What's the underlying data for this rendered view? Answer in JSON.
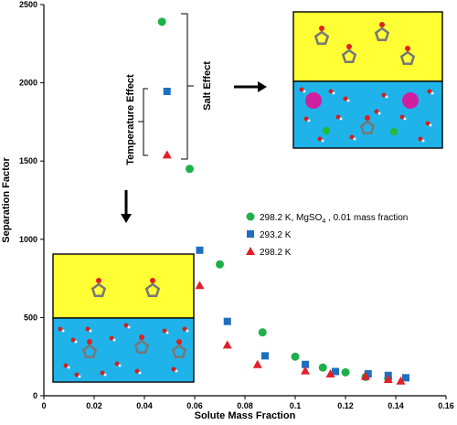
{
  "chart_data": {
    "type": "scatter",
    "xlabel": "Solute Mass Fraction",
    "ylabel": "Separation Factor",
    "xlim": [
      0,
      0.16
    ],
    "ylim": [
      0,
      2500
    ],
    "xticks": [
      "0",
      "0.02",
      "0.04",
      "0.06",
      "0.08",
      "0.1",
      "0.12",
      "0.14",
      "0.16"
    ],
    "yticks": [
      "0",
      "500",
      "1000",
      "1500",
      "2000",
      "2500"
    ],
    "grid": false,
    "legend_position": "center-right",
    "series": [
      {
        "name": "298.2 K, MgSO4 , 0.01  mass fraction",
        "legend_main": "298.2 K, MgSO",
        "legend_sub": "4",
        "legend_rest": " , 0.01  mass fraction",
        "marker": "circle",
        "color": "#1db04a",
        "points": [
          {
            "x": 0.047,
            "y": 2390
          },
          {
            "x": 0.058,
            "y": 1450
          },
          {
            "x": 0.07,
            "y": 840
          },
          {
            "x": 0.087,
            "y": 405
          },
          {
            "x": 0.1,
            "y": 250
          },
          {
            "x": 0.111,
            "y": 180
          },
          {
            "x": 0.12,
            "y": 150
          },
          {
            "x": 0.128,
            "y": 120
          },
          {
            "x": 0.137,
            "y": 110
          }
        ]
      },
      {
        "name": "293.2 K",
        "legend_main": "293.2 K",
        "marker": "square",
        "color": "#1f6fc0",
        "points": [
          {
            "x": 0.049,
            "y": 1945
          },
          {
            "x": 0.062,
            "y": 930
          },
          {
            "x": 0.073,
            "y": 475
          },
          {
            "x": 0.088,
            "y": 255
          },
          {
            "x": 0.104,
            "y": 200
          },
          {
            "x": 0.116,
            "y": 155
          },
          {
            "x": 0.129,
            "y": 140
          },
          {
            "x": 0.137,
            "y": 130
          },
          {
            "x": 0.144,
            "y": 115
          }
        ]
      },
      {
        "name": "298.2 K",
        "legend_main": "298.2 K",
        "marker": "triangle",
        "color": "#e0202a",
        "points": [
          {
            "x": 0.049,
            "y": 1540
          },
          {
            "x": 0.062,
            "y": 705
          },
          {
            "x": 0.073,
            "y": 325
          },
          {
            "x": 0.085,
            "y": 200
          },
          {
            "x": 0.104,
            "y": 160
          },
          {
            "x": 0.114,
            "y": 140
          },
          {
            "x": 0.128,
            "y": 125
          },
          {
            "x": 0.137,
            "y": 105
          },
          {
            "x": 0.142,
            "y": 95
          }
        ]
      }
    ],
    "annotations": {
      "temperature_effect": "Temperature Effect",
      "salt_effect": "Salt Effect"
    },
    "colors": {
      "organic_layer": "#ffff33",
      "aqueous_layer": "#1fb3ea",
      "inset_border": "#111111"
    }
  }
}
